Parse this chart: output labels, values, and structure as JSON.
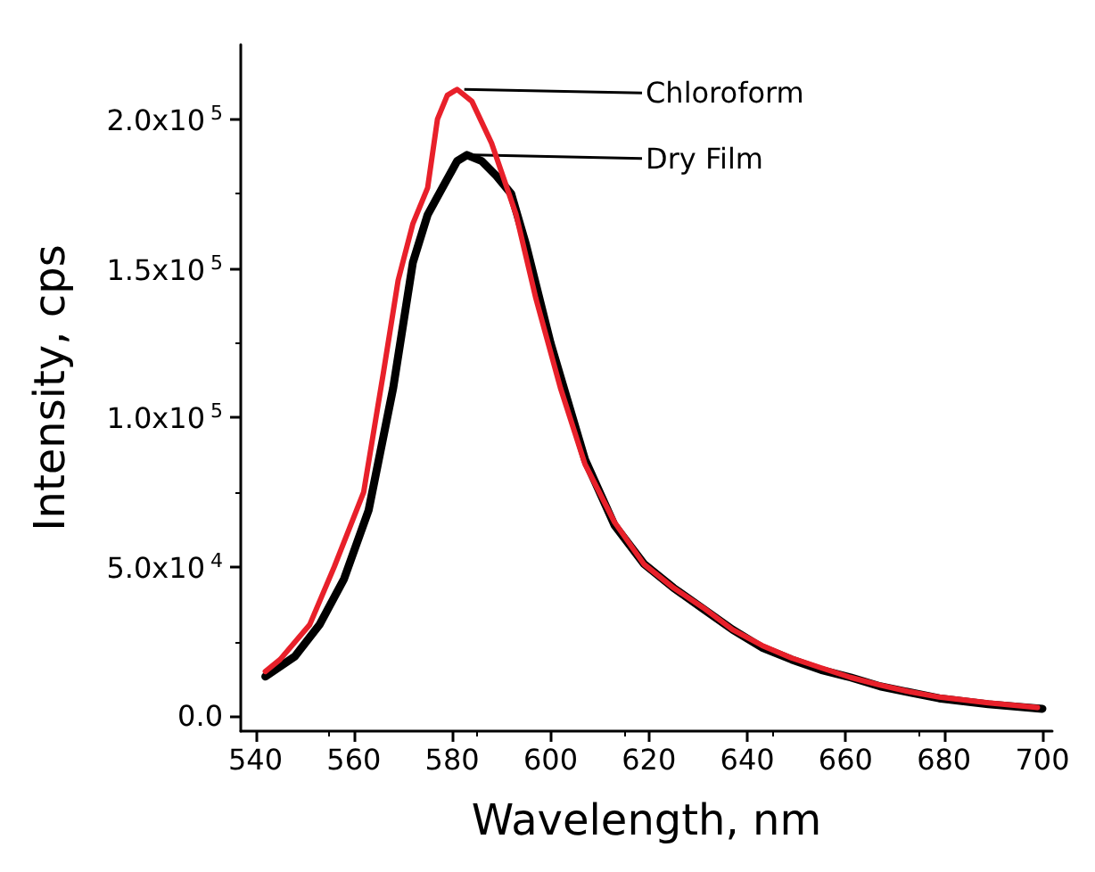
{
  "chart_data": {
    "type": "line",
    "xlabel": "Wavelength, nm",
    "ylabel": "Intensity, cps",
    "xlim": [
      537,
      702
    ],
    "xticks": [
      540,
      560,
      580,
      600,
      620,
      640,
      660,
      680,
      700
    ],
    "ylim": [
      -5000,
      225000
    ],
    "yticks": [
      {
        "value": 0,
        "label": "0.0"
      },
      {
        "value": 50000,
        "label": "5.0x10$^{4}$"
      },
      {
        "value": 100000,
        "label": "1.0x10$^{5}$"
      },
      {
        "value": 150000,
        "label": "1.5x10$^{5}$"
      },
      {
        "value": 200000,
        "label": "2.0x10$^{5}$"
      }
    ],
    "grid": false,
    "marker": "none",
    "line_style": "solid",
    "series": [
      {
        "color": "#000000",
        "x": [
          542,
          548,
          553,
          558,
          563,
          568,
          572,
          575,
          578,
          581,
          583,
          586,
          589,
          592,
          595,
          600,
          607,
          613,
          619,
          625,
          631,
          637,
          643,
          649,
          655,
          661,
          667,
          673,
          679,
          689,
          700
        ],
        "values": [
          13300,
          20000,
          30600,
          46000,
          69000,
          110000,
          152000,
          168000,
          177000,
          186000,
          188000,
          186000,
          181000,
          175000,
          158000,
          125000,
          86000,
          64000,
          51000,
          43000,
          36000,
          29000,
          23000,
          19000,
          15500,
          13000,
          10000,
          8000,
          6000,
          4000,
          2500
        ]
      },
      {
        "color": "#e8202a",
        "x": [
          542,
          545,
          551,
          556,
          562,
          566,
          569,
          572,
          575,
          577,
          579,
          581,
          584,
          588,
          593,
          597,
          602,
          607,
          613,
          619,
          625,
          631,
          637,
          643,
          649,
          655,
          661,
          667,
          673,
          679,
          689,
          699
        ],
        "values": [
          15000,
          19000,
          30600,
          50000,
          75100,
          115000,
          146000,
          165000,
          177000,
          200000,
          208000,
          210000,
          206000,
          192000,
          168000,
          140000,
          110000,
          84400,
          65000,
          50900,
          43000,
          36400,
          29000,
          23700,
          19500,
          16200,
          13000,
          10400,
          8200,
          6400,
          4500,
          2900
        ]
      }
    ],
    "annotations": [
      {
        "text": "Chloroform",
        "x": 581,
        "y": 210000
      },
      {
        "text": "Dry Film",
        "x": 583,
        "y": 188000
      }
    ]
  }
}
